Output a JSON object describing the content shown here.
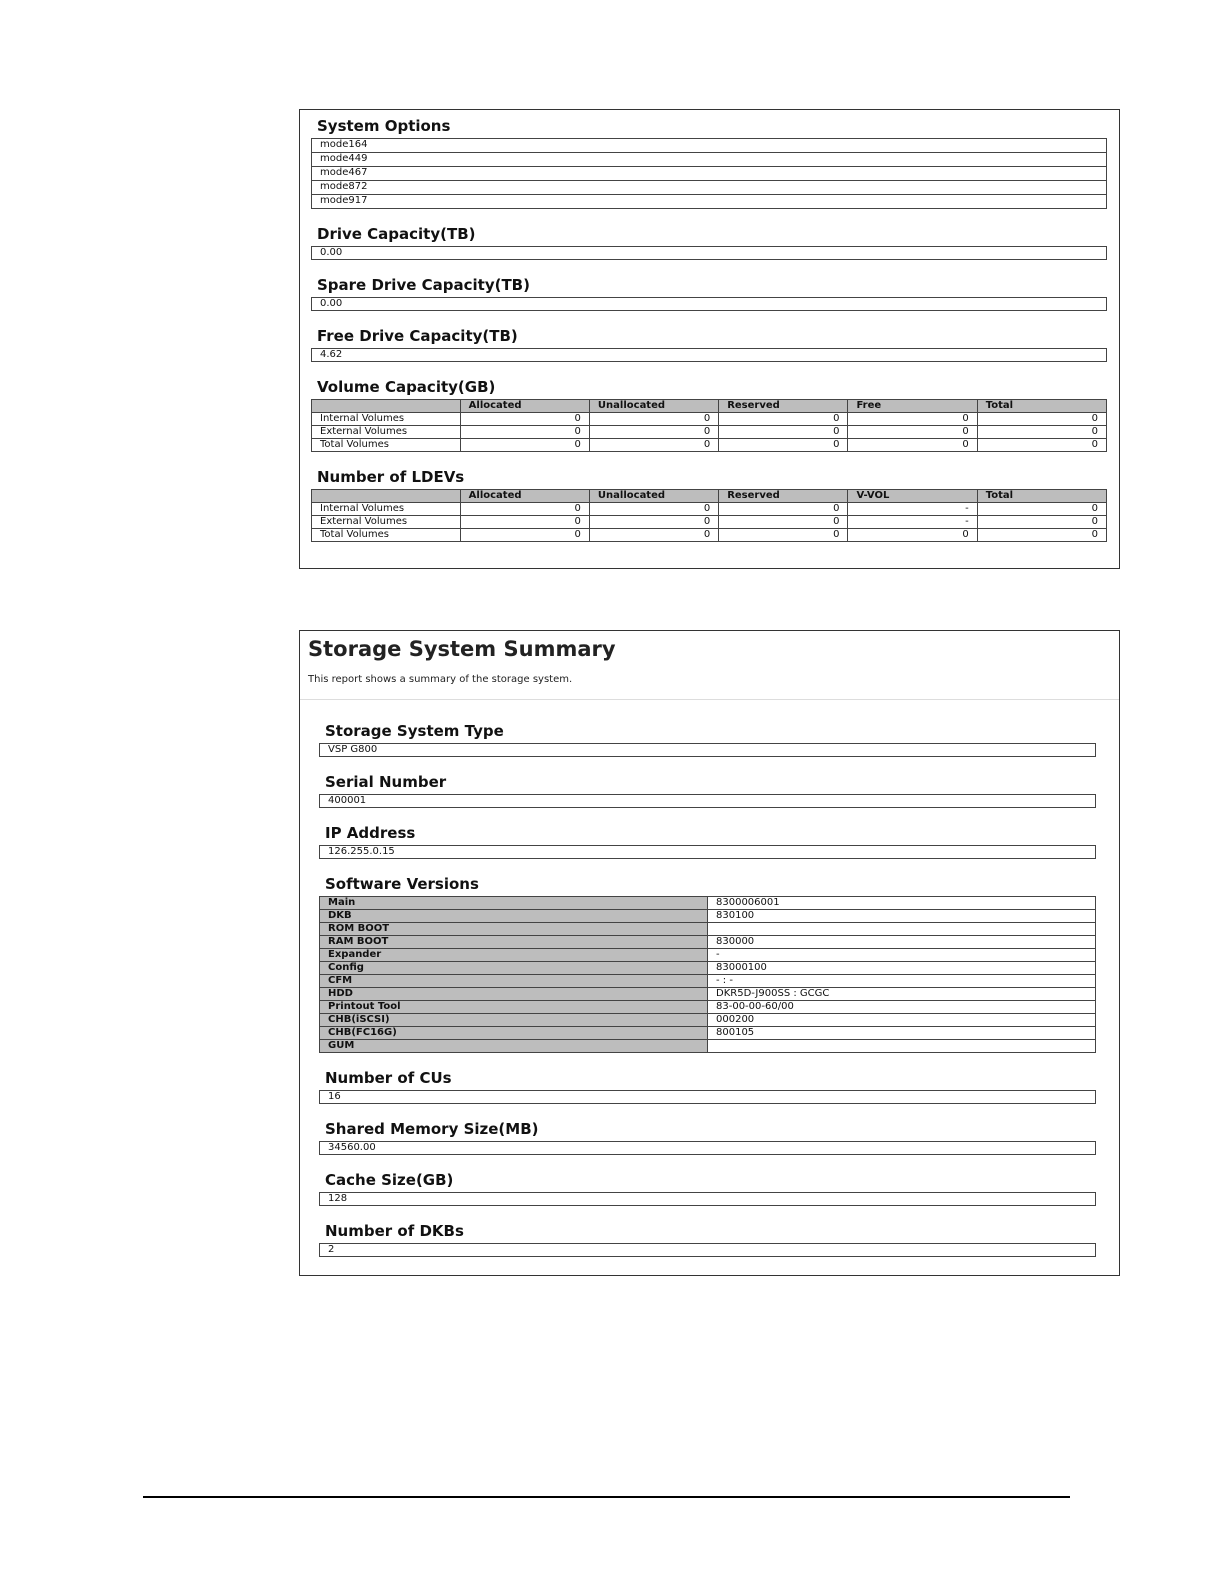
{
  "options_panel": {
    "sections": [
      {
        "heading": "System Options",
        "items": [
          "mode164",
          "mode449",
          "mode467",
          "mode872",
          "mode917"
        ]
      },
      {
        "heading": "Drive Capacity(TB)",
        "value": "0.00"
      },
      {
        "heading": "Spare Drive Capacity(TB)",
        "value": "0.00"
      },
      {
        "heading": "Free Drive Capacity(TB)",
        "value": "4.62"
      },
      {
        "heading": "Volume Capacity(GB)",
        "table": {
          "columns": [
            "Allocated",
            "Unallocated",
            "Reserved",
            "Free",
            "Total"
          ],
          "rows": [
            [
              "Internal Volumes",
              "0",
              "0",
              "0",
              "0",
              "0"
            ],
            [
              "External Volumes",
              "0",
              "0",
              "0",
              "0",
              "0"
            ],
            [
              "Total Volumes",
              "0",
              "0",
              "0",
              "0",
              "0"
            ]
          ]
        }
      },
      {
        "heading": "Number of LDEVs",
        "table": {
          "columns": [
            "Allocated",
            "Unallocated",
            "Reserved",
            "V-VOL",
            "Total"
          ],
          "rows": [
            [
              "Internal Volumes",
              "0",
              "0",
              "0",
              "-",
              "0"
            ],
            [
              "External Volumes",
              "0",
              "0",
              "0",
              "-",
              "0"
            ],
            [
              "Total Volumes",
              "0",
              "0",
              "0",
              "0",
              "0"
            ]
          ]
        }
      }
    ]
  },
  "summary_panel": {
    "title": "Storage System Summary",
    "description": "This report shows a summary of the storage system.",
    "sections": [
      {
        "heading": "Storage System Type",
        "value": "VSP G800"
      },
      {
        "heading": "Serial Number",
        "value": "400001"
      },
      {
        "heading": "IP Address",
        "value": "126.255.0.15"
      },
      {
        "heading": "Software Versions",
        "pairs": [
          {
            "name": "Main",
            "value": "8300006001"
          },
          {
            "name": "DKB",
            "value": "830100"
          },
          {
            "name": "ROM BOOT"
          },
          {
            "name": "RAM BOOT",
            "value": "830000"
          },
          {
            "name": "Expander",
            "value": "-"
          },
          {
            "name": "Config",
            "value": "83000100"
          },
          {
            "name": "CFM",
            "value": "- : -"
          },
          {
            "name": "HDD",
            "value": "DKR5D-J900SS : GCGC"
          },
          {
            "name": "Printout Tool",
            "value": "83-00-00-60/00"
          },
          {
            "name": "CHB(iSCSI)",
            "value": "000200"
          },
          {
            "name": "CHB(FC16G)",
            "value": "800105"
          },
          {
            "name": "GUM"
          }
        ]
      },
      {
        "heading": "Number of CUs",
        "value": "16"
      },
      {
        "heading": "Shared Memory Size(MB)",
        "value": "34560.00"
      },
      {
        "heading": "Cache Size(GB)",
        "value": "128"
      },
      {
        "heading": "Number of DKBs",
        "value": "2"
      }
    ]
  }
}
